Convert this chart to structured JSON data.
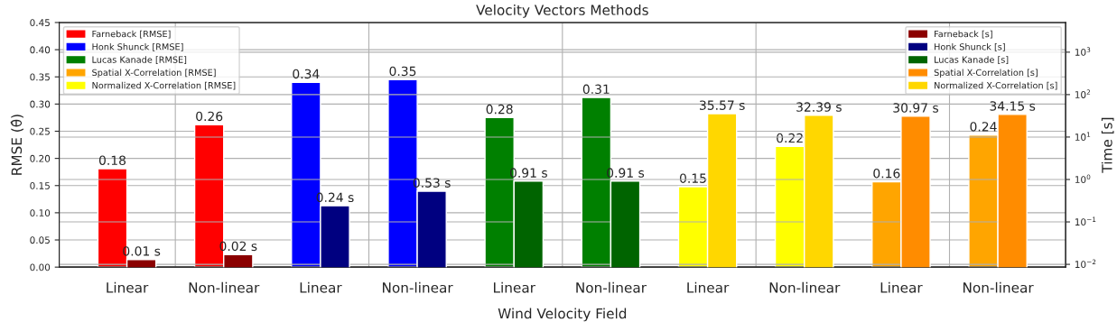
{
  "chart_data": {
    "type": "bar",
    "title": "Velocity Vectors Methods",
    "xlabel": "Wind Velocity Field",
    "ylabel": "RMSE (θ̂)",
    "y2label": "Time [s]",
    "categories": [
      "Linear",
      "Non-linear",
      "Linear",
      "Non-linear",
      "Linear",
      "Non-linear",
      "Linear",
      "Non-linear",
      "Linear",
      "Non-linear"
    ],
    "series": [
      {
        "name": "Farneback [RMSE]",
        "color": "#ff0000",
        "axis": "y",
        "values": [
          0.181,
          0.262,
          null,
          null,
          null,
          null,
          null,
          null,
          null,
          null
        ],
        "value_labels": [
          "0.18",
          "0.26",
          null,
          null,
          null,
          null,
          null,
          null,
          null,
          null
        ]
      },
      {
        "name": "Honk Shunck [RMSE]",
        "color": "#0000ff",
        "axis": "y",
        "values": [
          null,
          null,
          0.34,
          0.345,
          null,
          null,
          null,
          null,
          null,
          null
        ],
        "value_labels": [
          null,
          null,
          "0.34",
          "0.35",
          null,
          null,
          null,
          null,
          null,
          null
        ]
      },
      {
        "name": "Lucas Kanade [RMSE]",
        "color": "#008000",
        "axis": "y",
        "values": [
          null,
          null,
          null,
          null,
          0.275,
          0.312,
          null,
          null,
          null,
          null
        ],
        "value_labels": [
          null,
          null,
          null,
          null,
          "0.28",
          "0.31",
          null,
          null,
          null,
          null
        ]
      },
      {
        "name": "Spatial X-Correlation [RMSE]",
        "color": "#ffa500",
        "axis": "y",
        "values": [
          null,
          null,
          null,
          null,
          null,
          null,
          null,
          null,
          0.157,
          0.243
        ],
        "value_labels": [
          null,
          null,
          null,
          null,
          null,
          null,
          null,
          null,
          "0.16",
          "0.24"
        ]
      },
      {
        "name": "Normalized X-Correlation [RMSE]",
        "color": "#ffff00",
        "axis": "y",
        "values": [
          null,
          null,
          null,
          null,
          null,
          null,
          0.148,
          0.222,
          null,
          null
        ],
        "value_labels": [
          null,
          null,
          null,
          null,
          null,
          null,
          "0.15",
          "0.22",
          null,
          null
        ]
      },
      {
        "name": "Farneback [s]",
        "color": "#8b0000",
        "axis": "y2",
        "values": [
          0.013,
          0.017,
          null,
          null,
          null,
          null,
          null,
          null,
          null,
          null
        ],
        "value_labels": [
          "0.01 s",
          "0.02 s",
          null,
          null,
          null,
          null,
          null,
          null,
          null,
          null
        ]
      },
      {
        "name": "Honk Shunck [s]",
        "color": "#000080",
        "axis": "y2",
        "values": [
          null,
          null,
          0.24,
          0.53,
          null,
          null,
          null,
          null,
          null,
          null
        ],
        "value_labels": [
          null,
          null,
          "0.24 s",
          "0.53 s",
          null,
          null,
          null,
          null,
          null,
          null
        ]
      },
      {
        "name": "Lucas Kanade [s]",
        "color": "#006400",
        "axis": "y2",
        "values": [
          null,
          null,
          null,
          null,
          0.91,
          0.91,
          null,
          null,
          null,
          null
        ],
        "value_labels": [
          null,
          null,
          null,
          null,
          "0.91 s",
          "0.91 s",
          null,
          null,
          null,
          null
        ]
      },
      {
        "name": "Spatial X-Correlation [s]",
        "color": "#ff8c00",
        "axis": "y2",
        "values": [
          null,
          null,
          null,
          null,
          null,
          null,
          null,
          null,
          30.97,
          34.15
        ],
        "value_labels": [
          null,
          null,
          null,
          null,
          null,
          null,
          null,
          null,
          "30.97 s",
          "34.15 s"
        ]
      },
      {
        "name": "Normalized X-Correlation [s]",
        "color": "#ffd700",
        "axis": "y2",
        "values": [
          null,
          null,
          null,
          null,
          null,
          null,
          35.57,
          32.39,
          null,
          null
        ],
        "value_labels": [
          null,
          null,
          null,
          null,
          null,
          null,
          "35.57 s",
          "32.39 s",
          null,
          null
        ]
      }
    ],
    "ylim": [
      0,
      0.45
    ],
    "yticks": [
      {
        "value": 0,
        "label": "0.00"
      },
      0.05,
      {
        "value": 0.1,
        "label": "0.10"
      },
      0.15,
      {
        "value": 0.2,
        "label": "0.20"
      },
      0.25,
      {
        "value": 0.3,
        "label": "0.30"
      },
      0.35,
      {
        "value": 0.4,
        "label": "0.40"
      },
      0.45
    ],
    "log": "y2",
    "y2lim": [
      0.0086,
      5000
    ],
    "y2ticks": [
      {
        "value": 0.01,
        "label": "10$^{−2}$"
      },
      {
        "value": 0.1,
        "label": "10$^{−1}$"
      },
      {
        "value": 1,
        "label": "10$^{0}$"
      },
      {
        "value": 10,
        "label": "10$^{1}$"
      },
      {
        "value": 100,
        "label": "10$^{2}$"
      },
      {
        "value": 1000,
        "label": "10$^{3}$"
      }
    ],
    "grid": true,
    "legend": "top left"
  }
}
